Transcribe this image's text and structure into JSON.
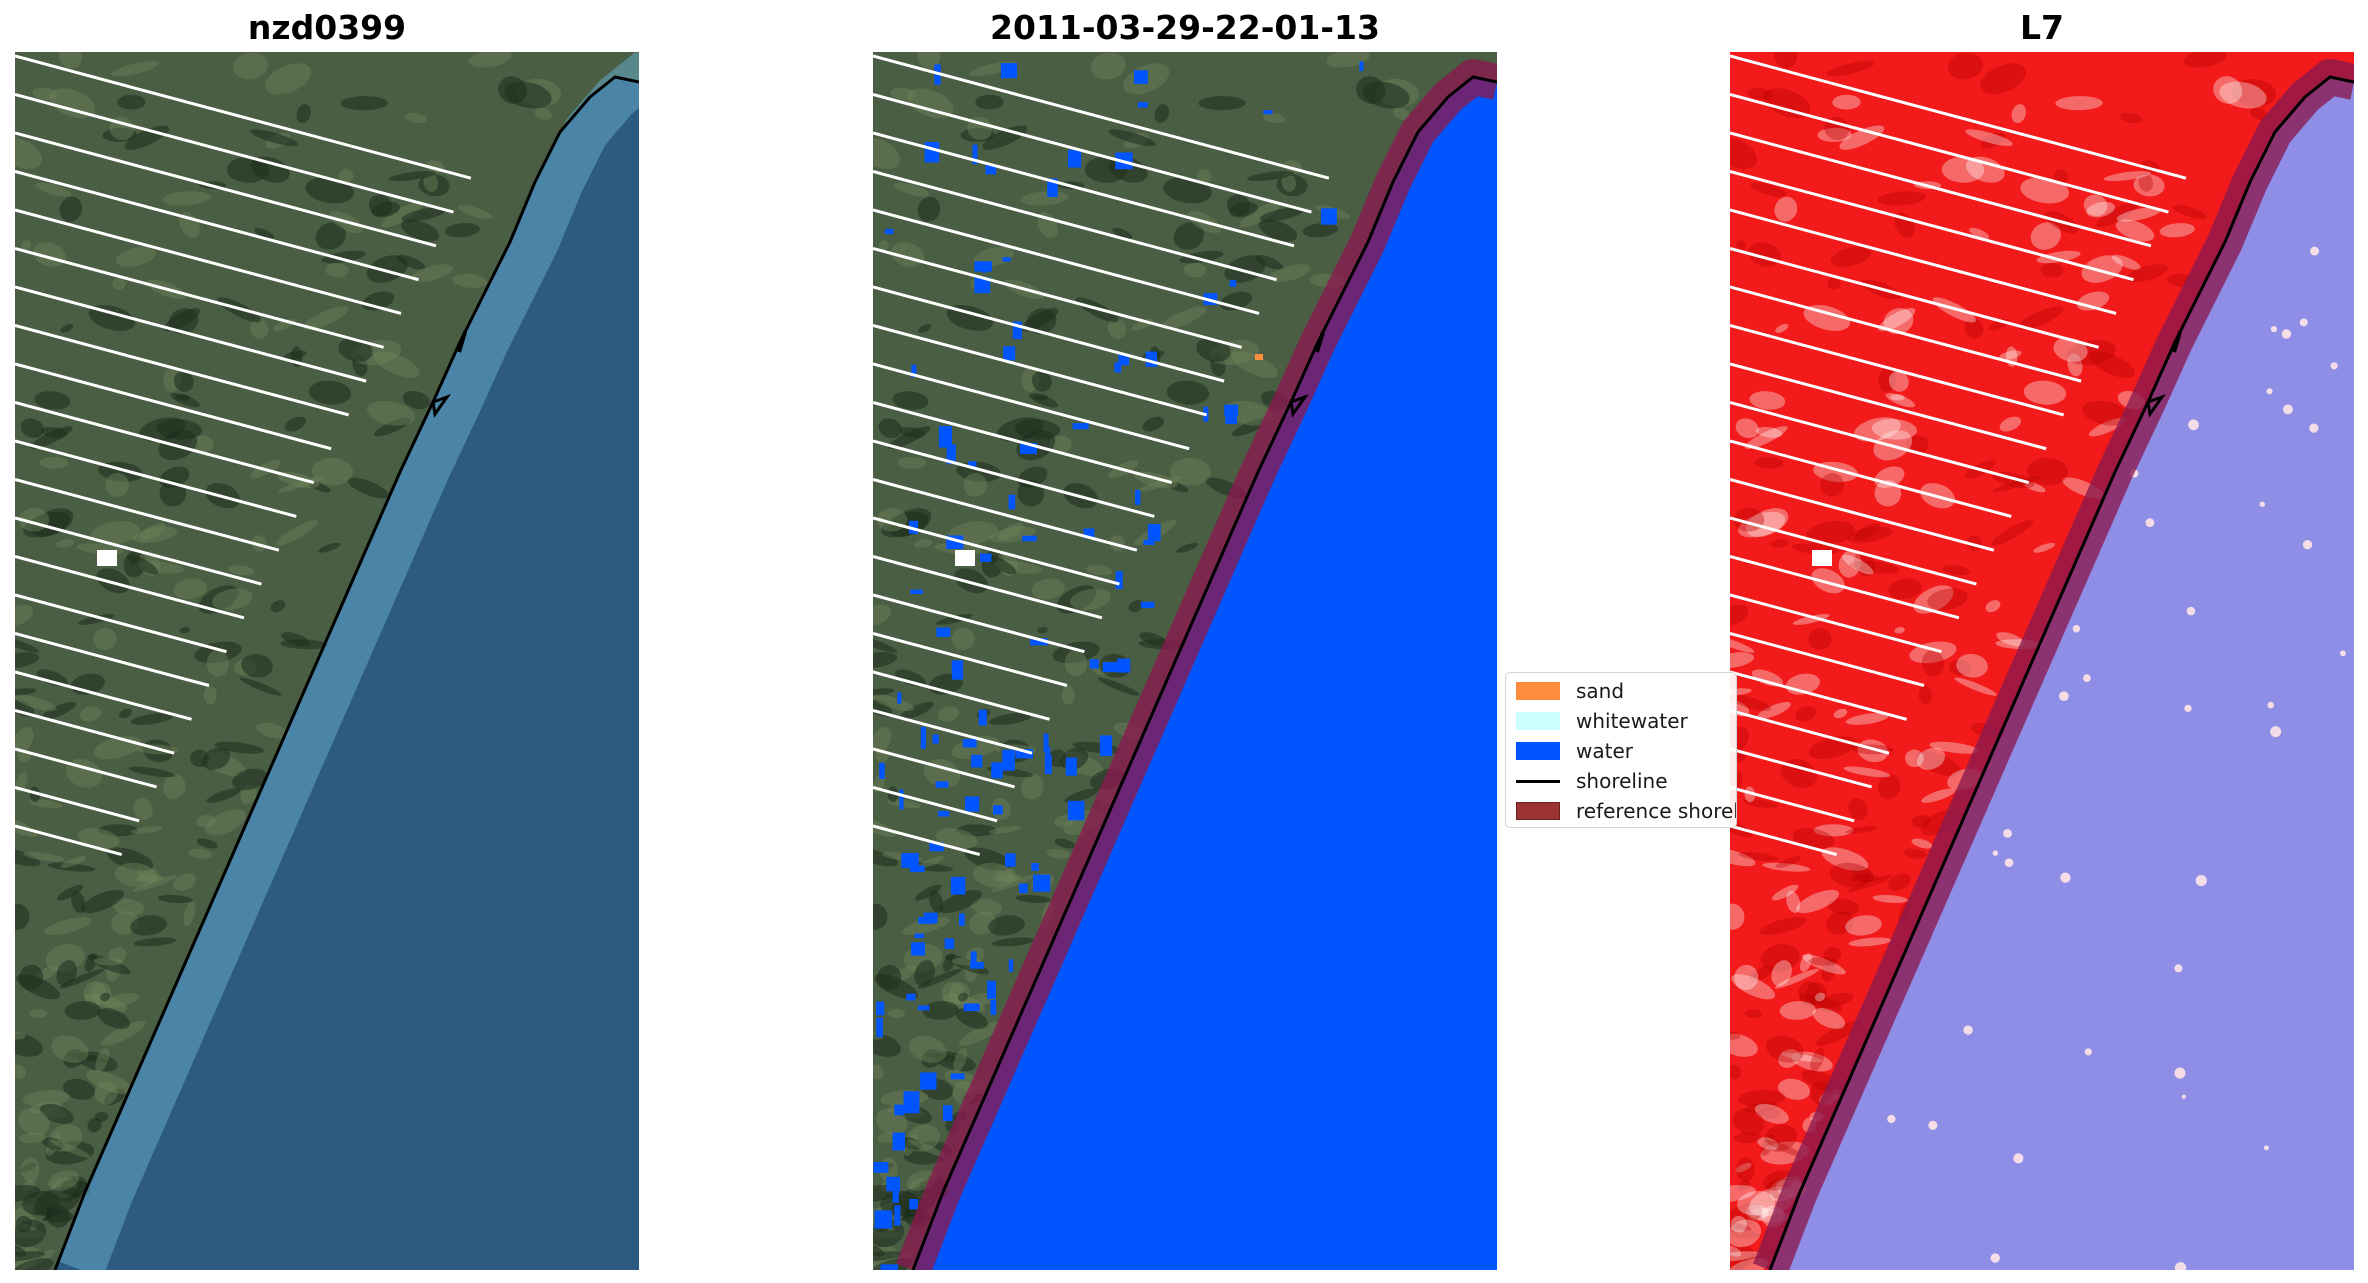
{
  "panels": [
    {
      "title": "nzd0399"
    },
    {
      "title": "2011-03-29-22-01-13"
    },
    {
      "title": "L7"
    }
  ],
  "legend": {
    "items": [
      {
        "label": "sand",
        "kind": "patch",
        "color": "#ff8c3c"
      },
      {
        "label": "whitewater",
        "kind": "patch",
        "color": "#ccffff"
      },
      {
        "label": "water",
        "kind": "patch",
        "color": "#0055ff"
      },
      {
        "label": "shoreline",
        "kind": "line",
        "color": "#000000"
      },
      {
        "label": "reference shorel...",
        "kind": "patch",
        "color": "#9b3333"
      }
    ]
  },
  "colors": {
    "land_rgb": "#4a5e44",
    "ocean_rgb": "#2c5a80",
    "water_class": "#0055ff",
    "land_index": "#f21a1a",
    "water_index": "#8e8ee6",
    "reference_buffer": "#8b1a4f",
    "shoreline": "#000000",
    "scanline_gap": "#ffffff"
  }
}
